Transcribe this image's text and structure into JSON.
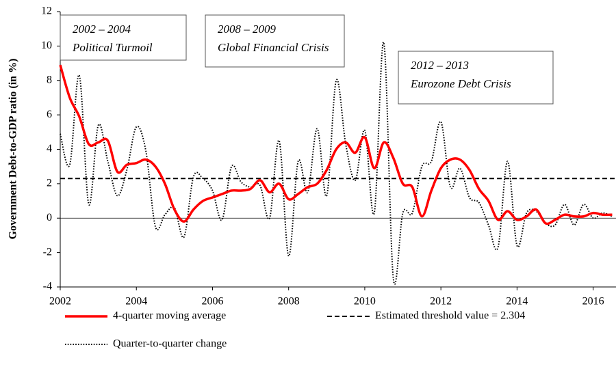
{
  "chart_data": {
    "type": "line",
    "ylabel": "Government Debt-to-GDP ratio (in %)",
    "x": [
      2002,
      2002.25,
      2002.5,
      2002.75,
      2003,
      2003.25,
      2003.5,
      2003.75,
      2004,
      2004.25,
      2004.5,
      2004.75,
      2005,
      2005.25,
      2005.5,
      2005.75,
      2006,
      2006.25,
      2006.5,
      2006.75,
      2007,
      2007.25,
      2007.5,
      2007.75,
      2008,
      2008.25,
      2008.5,
      2008.75,
      2009,
      2009.25,
      2009.5,
      2009.75,
      2010,
      2010.25,
      2010.5,
      2010.75,
      2011,
      2011.25,
      2011.5,
      2011.75,
      2012,
      2012.25,
      2012.5,
      2012.75,
      2013,
      2013.25,
      2013.5,
      2013.75,
      2014,
      2014.25,
      2014.5,
      2014.75,
      2015,
      2015.25,
      2015.5,
      2015.75,
      2016,
      2016.25,
      2016.5
    ],
    "series": [
      {
        "name": "4-quarter moving average",
        "color": "#ff0000",
        "style": "solid",
        "values": [
          8.9,
          7.0,
          5.9,
          4.3,
          4.4,
          4.5,
          2.7,
          3.1,
          3.2,
          3.4,
          3.0,
          2.0,
          0.5,
          -0.2,
          0.5,
          1.0,
          1.2,
          1.4,
          1.6,
          1.6,
          1.7,
          2.2,
          1.5,
          2.0,
          1.1,
          1.4,
          1.8,
          2.0,
          2.8,
          4.0,
          4.4,
          3.8,
          4.7,
          2.9,
          4.4,
          3.5,
          2.0,
          1.8,
          0.1,
          1.6,
          2.9,
          3.4,
          3.4,
          2.8,
          1.7,
          1.0,
          -0.1,
          0.4,
          -0.1,
          0.1,
          0.5,
          -0.3,
          -0.1,
          0.2,
          0.1,
          0.1,
          0.3,
          0.2,
          0.2
        ]
      },
      {
        "name": "Quarter-to-quarter change",
        "color": "#000000",
        "style": "dotted",
        "values": [
          4.9,
          3.1,
          8.3,
          0.8,
          5.4,
          3.3,
          1.3,
          2.8,
          5.3,
          3.9,
          -0.5,
          0.2,
          0.6,
          -1.1,
          2.4,
          2.3,
          1.6,
          -0.1,
          3.0,
          2.1,
          1.8,
          1.9,
          0.0,
          4.5,
          -2.2,
          3.3,
          1.5,
          5.2,
          1.3,
          8.0,
          4.3,
          2.2,
          5.1,
          0.3,
          10.2,
          -3.5,
          0.3,
          0.3,
          3.0,
          3.3,
          5.6,
          1.8,
          2.9,
          1.2,
          0.9,
          -0.4,
          -1.7,
          3.3,
          -1.6,
          0.3,
          0.4,
          -0.3,
          -0.4,
          0.8,
          -0.4,
          0.8,
          0.0,
          0.3,
          0.1
        ]
      }
    ],
    "threshold": {
      "label": "Estimated threshold value = 2.304",
      "value": 2.304,
      "color": "#000000",
      "style": "dashed"
    },
    "annotations": [
      {
        "lines": [
          "2002 – 2004",
          "Political Turmoil"
        ]
      },
      {
        "lines": [
          "2008 – 2009",
          "Global  Financial Crisis"
        ]
      },
      {
        "lines": [
          "2012 – 2013",
          "Eurozone Debt Crisis"
        ]
      }
    ],
    "xlim": [
      2002,
      2016.6
    ],
    "xticks": [
      2002,
      2004,
      2006,
      2008,
      2010,
      2012,
      2014,
      2016
    ],
    "ylim": [
      -4,
      12
    ],
    "yticks": [
      -4,
      -2,
      0,
      2,
      4,
      6,
      8,
      10,
      12
    ],
    "grid": false
  }
}
